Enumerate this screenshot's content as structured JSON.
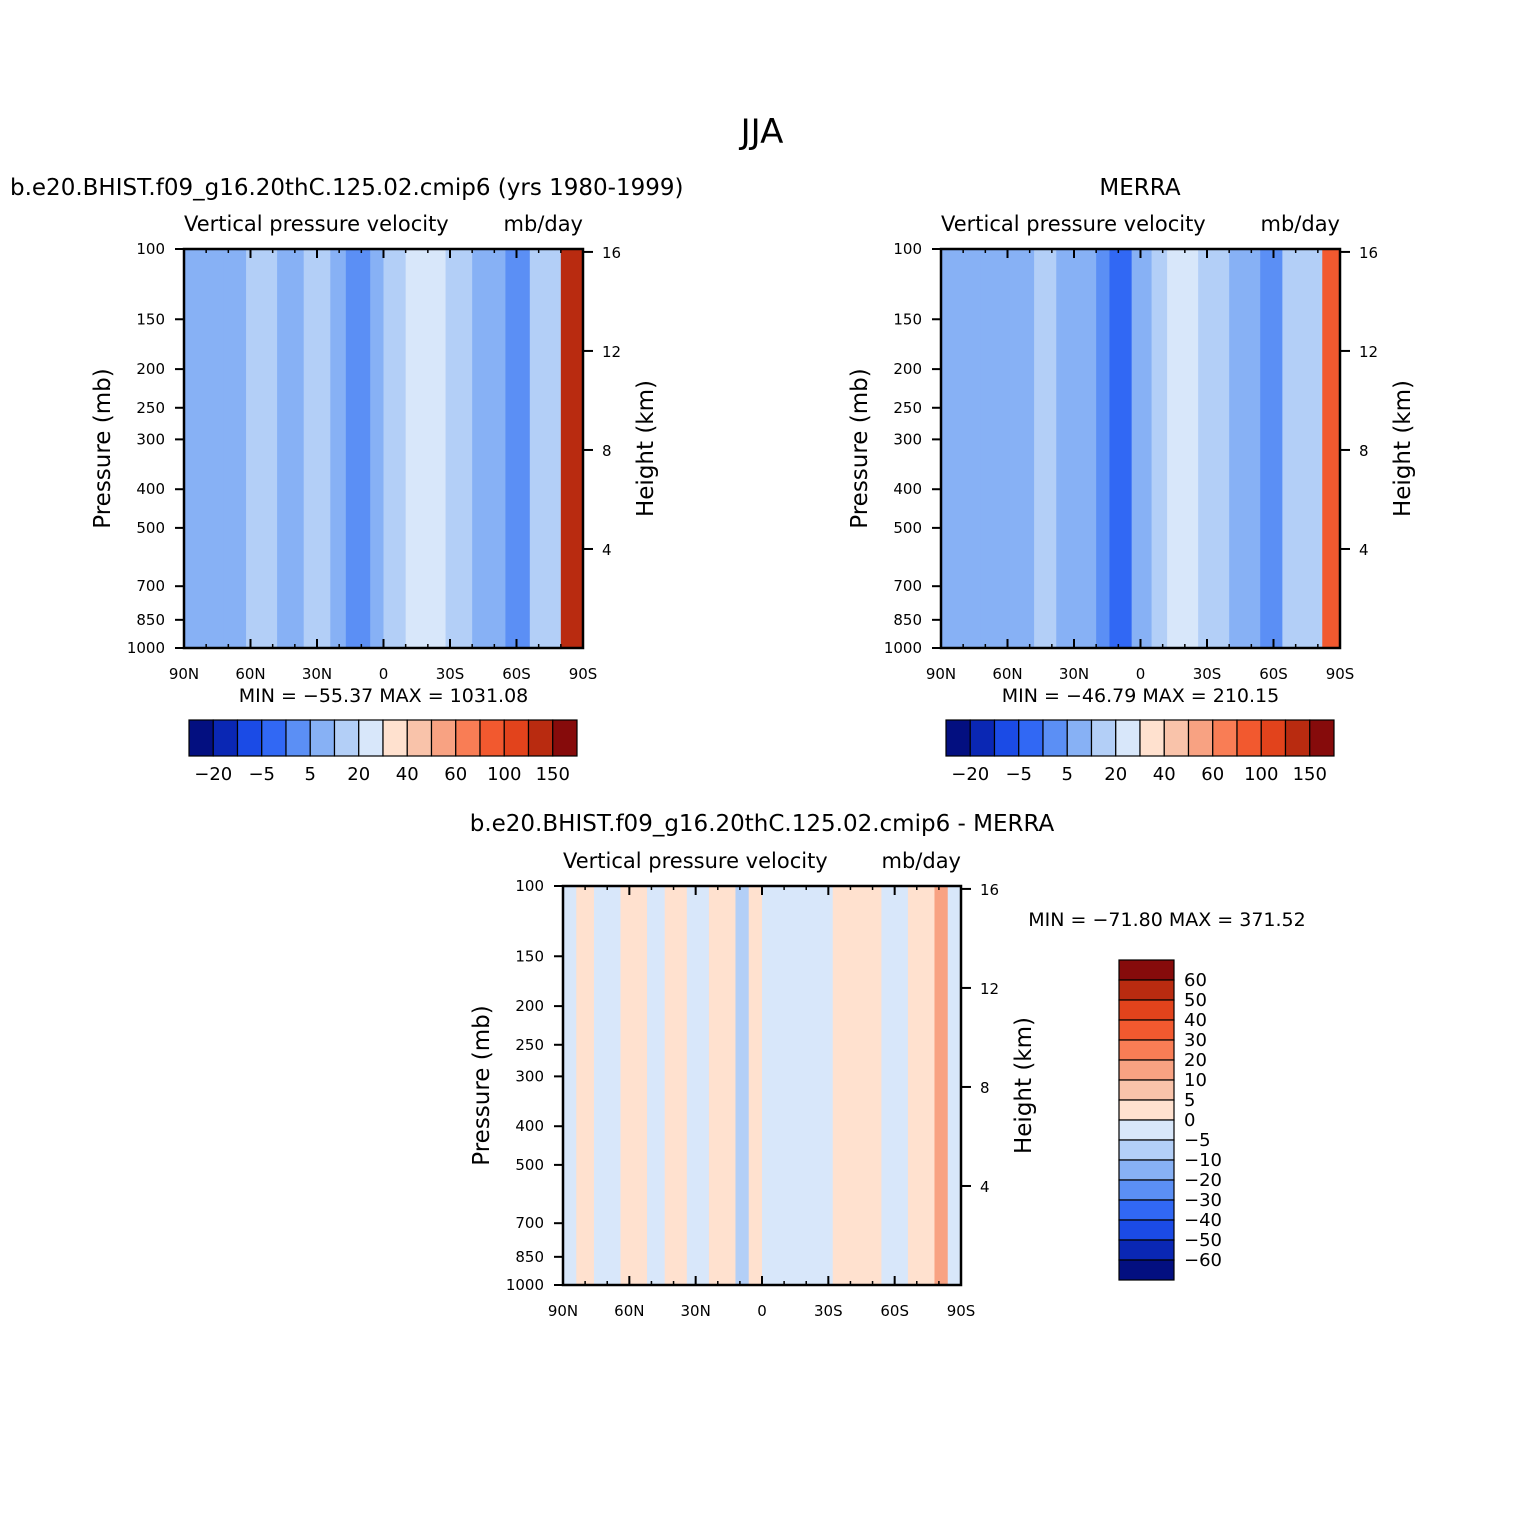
{
  "figure": {
    "title": "JJA"
  },
  "colors": {
    "positive_scale": [
      "#ffe1cf",
      "#f9c3aa",
      "#f8a282",
      "#f97d55",
      "#f2592f",
      "#e2431c",
      "#b92b10",
      "#860b0b"
    ],
    "negative_scale": [
      "#d8e7fa",
      "#b3cff7",
      "#87b1f5",
      "#5b8ff5",
      "#3168f4",
      "#1b4be6",
      "#0a27b4",
      "#030f80"
    ]
  },
  "chart_data": [
    {
      "type": "heatmap",
      "id": "model",
      "case_title": "b.e20.BHIST.f09_g16.20thC.125.02.cmip6 (yrs 1980-1999)",
      "variable": "Vertical pressure velocity",
      "units": "mb/day",
      "ylabel": "Pressure (mb)",
      "y2label": "Height (km)",
      "x_ticks": [
        "90N",
        "60N",
        "30N",
        "0",
        "30S",
        "60S",
        "90S"
      ],
      "xlim": [
        90,
        -90
      ],
      "y_ticks": [
        100,
        150,
        200,
        250,
        300,
        400,
        500,
        700,
        850,
        1000
      ],
      "ylim": [
        1000,
        100
      ],
      "y_scale": "log",
      "y2_ticks": [
        16,
        12,
        8,
        4
      ],
      "min_max": "MIN = -55.37   MAX = 1031.08",
      "min": -55.37,
      "max": 1031.08,
      "colorbar": {
        "orientation": "horizontal",
        "labels": [
          "-20",
          "-5",
          "5",
          "20",
          "40",
          "60",
          "100",
          "150"
        ],
        "levels": [
          -30,
          -20,
          -10,
          -5,
          0,
          5,
          10,
          20,
          30,
          40,
          50,
          60,
          80,
          100,
          150,
          200
        ]
      },
      "columns": [
        {
          "from": 90,
          "to": 72,
          "value": -20
        },
        {
          "from": 72,
          "to": 62,
          "value": -20
        },
        {
          "from": 62,
          "to": 48,
          "value": -10
        },
        {
          "from": 48,
          "to": 36,
          "value": -20
        },
        {
          "from": 36,
          "to": 24,
          "value": -10
        },
        {
          "from": 24,
          "to": 17,
          "value": -20
        },
        {
          "from": 17,
          "to": 6,
          "value": -30
        },
        {
          "from": 6,
          "to": 0,
          "value": -20
        },
        {
          "from": 0,
          "to": -10,
          "value": -10
        },
        {
          "from": -10,
          "to": -28,
          "value": 0
        },
        {
          "from": -28,
          "to": -40,
          "value": -10
        },
        {
          "from": -40,
          "to": -55,
          "value": -20
        },
        {
          "from": -55,
          "to": -66,
          "value": -30
        },
        {
          "from": -66,
          "to": -80,
          "value": -10
        },
        {
          "from": -80,
          "to": -90,
          "value": 60
        }
      ]
    },
    {
      "type": "heatmap",
      "id": "obs",
      "case_title": "MERRA",
      "variable": "Vertical pressure velocity",
      "units": "mb/day",
      "ylabel": "Pressure (mb)",
      "y2label": "Height (km)",
      "x_ticks": [
        "90N",
        "60N",
        "30N",
        "0",
        "30S",
        "60S",
        "90S"
      ],
      "xlim": [
        90,
        -90
      ],
      "y_ticks": [
        100,
        150,
        200,
        250,
        300,
        400,
        500,
        700,
        850,
        1000
      ],
      "ylim": [
        1000,
        100
      ],
      "y_scale": "log",
      "y2_ticks": [
        16,
        12,
        8,
        4
      ],
      "min_max": "MIN = -46.79   MAX = 210.15",
      "min": -46.79,
      "max": 210.15,
      "colorbar": {
        "orientation": "horizontal",
        "labels": [
          "-20",
          "-5",
          "5",
          "20",
          "40",
          "60",
          "100",
          "150"
        ],
        "levels": [
          -30,
          -20,
          -10,
          -5,
          0,
          5,
          10,
          20,
          30,
          40,
          50,
          60,
          80,
          100,
          150,
          200
        ]
      },
      "columns": [
        {
          "from": 90,
          "to": 72,
          "value": -20
        },
        {
          "from": 72,
          "to": 48,
          "value": -20
        },
        {
          "from": 48,
          "to": 38,
          "value": -10
        },
        {
          "from": 38,
          "to": 20,
          "value": -20
        },
        {
          "from": 20,
          "to": 14,
          "value": -30
        },
        {
          "from": 14,
          "to": 4,
          "value": -40
        },
        {
          "from": 4,
          "to": -5,
          "value": -20
        },
        {
          "from": -5,
          "to": -12,
          "value": -10
        },
        {
          "from": -12,
          "to": -26,
          "value": 0
        },
        {
          "from": -26,
          "to": -40,
          "value": -10
        },
        {
          "from": -40,
          "to": -54,
          "value": -20
        },
        {
          "from": -54,
          "to": -64,
          "value": -30
        },
        {
          "from": -64,
          "to": -82,
          "value": -10
        },
        {
          "from": -82,
          "to": -90,
          "value": 40
        }
      ]
    },
    {
      "type": "heatmap",
      "id": "diff",
      "case_title": "b.e20.BHIST.f09_g16.20thC.125.02.cmip6 - MERRA",
      "variable": "Vertical pressure velocity",
      "units": "mb/day",
      "ylabel": "Pressure (mb)",
      "y2label": "Height (km)",
      "x_ticks": [
        "90N",
        "60N",
        "30N",
        "0",
        "30S",
        "60S",
        "90S"
      ],
      "xlim": [
        90,
        -90
      ],
      "y_ticks": [
        100,
        150,
        200,
        250,
        300,
        400,
        500,
        700,
        850,
        1000
      ],
      "ylim": [
        1000,
        100
      ],
      "y_scale": "log",
      "y2_ticks": [
        16,
        12,
        8,
        4
      ],
      "min_max": "MIN = -71.80   MAX = 371.52",
      "min": -71.8,
      "max": 371.52,
      "colorbar": {
        "orientation": "vertical",
        "labels": [
          "60",
          "50",
          "40",
          "30",
          "20",
          "10",
          "5",
          "0",
          "-5",
          "-10",
          "-20",
          "-30",
          "-40",
          "-50",
          "-60"
        ]
      },
      "columns": [
        {
          "from": 90,
          "to": 84,
          "value": -5
        },
        {
          "from": 84,
          "to": 76,
          "value": 5
        },
        {
          "from": 76,
          "to": 64,
          "value": -5
        },
        {
          "from": 64,
          "to": 52,
          "value": 5
        },
        {
          "from": 52,
          "to": 44,
          "value": -5
        },
        {
          "from": 44,
          "to": 34,
          "value": 5
        },
        {
          "from": 34,
          "to": 24,
          "value": -5
        },
        {
          "from": 24,
          "to": 12,
          "value": 5
        },
        {
          "from": 12,
          "to": 6,
          "value": -10
        },
        {
          "from": 6,
          "to": 0,
          "value": 5
        },
        {
          "from": 0,
          "to": -32,
          "value": -5
        },
        {
          "from": -32,
          "to": -54,
          "value": 5
        },
        {
          "from": -54,
          "to": -66,
          "value": -5
        },
        {
          "from": -66,
          "to": -78,
          "value": 5
        },
        {
          "from": -78,
          "to": -84,
          "value": 20
        },
        {
          "from": -84,
          "to": -90,
          "value": -5
        }
      ]
    }
  ]
}
